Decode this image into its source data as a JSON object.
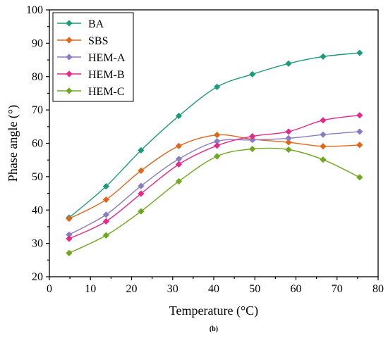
{
  "chart_data": {
    "type": "line",
    "xlabel": "Temperature (°C)",
    "ylabel": "Phase angle  (°)",
    "caption": "(b)",
    "xlim": [
      0,
      80
    ],
    "ylim": [
      20,
      100
    ],
    "xticks": [
      0,
      10,
      20,
      30,
      40,
      50,
      60,
      70,
      80
    ],
    "yticks": [
      20,
      30,
      40,
      50,
      60,
      70,
      80,
      90,
      100
    ],
    "grid": false,
    "legend_position": "top-left",
    "x": [
      4.8,
      13.8,
      22.3,
      31.5,
      40.8,
      49.4,
      58.2,
      66.6,
      75.5
    ],
    "series": [
      {
        "name": "BA",
        "color": "#1a9b7a",
        "marker": "diamond",
        "values": [
          37.7,
          47.1,
          57.9,
          68.2,
          76.9,
          80.7,
          83.9,
          86.0,
          87.1
        ]
      },
      {
        "name": "SBS",
        "color": "#e0661a",
        "marker": "diamond",
        "values": [
          37.4,
          43.1,
          51.8,
          59.2,
          62.5,
          61.2,
          60.3,
          59.1,
          59.5
        ]
      },
      {
        "name": "HEM-A",
        "color": "#8a7cc2",
        "marker": "diamond",
        "values": [
          32.6,
          38.6,
          47.2,
          55.3,
          60.6,
          61.0,
          61.5,
          62.6,
          63.5
        ]
      },
      {
        "name": "HEM-B",
        "color": "#e8288a",
        "marker": "diamond",
        "values": [
          31.4,
          36.6,
          44.9,
          53.7,
          59.3,
          62.1,
          63.5,
          66.9,
          68.4
        ]
      },
      {
        "name": "HEM-C",
        "color": "#6fa81e",
        "marker": "diamond",
        "values": [
          27.1,
          32.4,
          39.6,
          48.6,
          56.1,
          58.3,
          58.1,
          55.1,
          49.8
        ]
      }
    ]
  }
}
